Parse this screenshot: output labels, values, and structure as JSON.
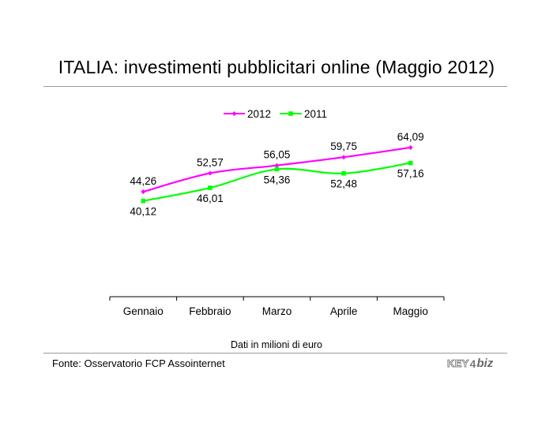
{
  "title": "ITALIA: investimenti pubblicitari online (Maggio 2012)",
  "note": "Dati in milioni di euro",
  "source": "Fonte: Osservatorio FCP Assointernet",
  "logo": {
    "part1": "KEY",
    "part2": "4",
    "part3": "biz"
  },
  "colors": {
    "series_2012": "#ff00ff",
    "series_2011": "#00ff00",
    "axis": "#000000",
    "rule": "#9a9a9a"
  },
  "chart_data": {
    "type": "line",
    "categories": [
      "Gennaio",
      "Febbraio",
      "Marzo",
      "Aprile",
      "Maggio"
    ],
    "series": [
      {
        "name": "2012",
        "values": [
          44.26,
          52.57,
          56.05,
          59.75,
          64.09
        ],
        "labels": [
          "44,26",
          "52,57",
          "56,05",
          "59,75",
          "64,09"
        ],
        "label_position": "above"
      },
      {
        "name": "2011",
        "values": [
          40.12,
          46.01,
          54.36,
          52.48,
          57.16
        ],
        "labels": [
          "40,12",
          "46,01",
          "54,36",
          "52,48",
          "57,16"
        ],
        "label_position": "below"
      }
    ],
    "legend_position": "top-center",
    "grid": false,
    "y_axis_visible": false
  }
}
